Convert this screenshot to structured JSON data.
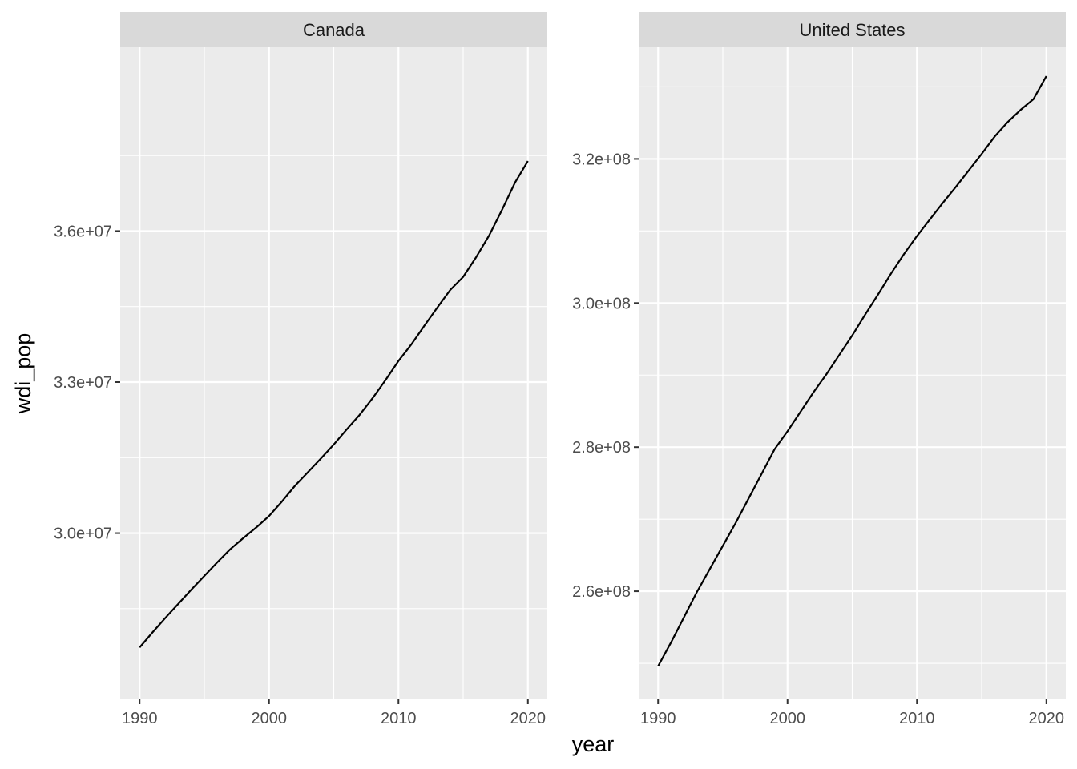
{
  "chart_data": {
    "type": "line",
    "facet_type": "wrap",
    "xlabel": "year",
    "ylabel": "wdi_pop",
    "scales": "free_y",
    "grid": true,
    "colors": {
      "panel_background": "#ebebeb",
      "strip_background": "#d9d9d9",
      "grid_line": "#ffffff",
      "line": "#000000",
      "tick_text": "#4d4d4d"
    },
    "panels": [
      {
        "name": "Canada",
        "xlim": [
          1988.5,
          2021.5
        ],
        "ylim": [
          26700000,
          39650000
        ],
        "xticks": [
          1990,
          2000,
          2010,
          2020
        ],
        "xtick_labels": [
          "1990",
          "2000",
          "2010",
          "2020"
        ],
        "yticks": [
          30000000,
          33000000,
          36000000
        ],
        "ytick_labels": [
          "3.0e+07",
          "3.3e+07",
          "3.6e+07"
        ],
        "x": [
          1990,
          1991,
          1992,
          1993,
          1994,
          1995,
          1996,
          1997,
          1998,
          1999,
          2000,
          2001,
          2002,
          2003,
          2004,
          2005,
          2006,
          2007,
          2008,
          2009,
          2010,
          2011,
          2012,
          2013,
          2014,
          2015,
          2016,
          2017,
          2018,
          2019,
          2020
        ],
        "y": [
          27730000,
          28030000,
          28320000,
          28600000,
          28880000,
          29150000,
          29420000,
          29680000,
          29900000,
          30110000,
          30340000,
          30630000,
          30940000,
          31210000,
          31480000,
          31760000,
          32060000,
          32350000,
          32680000,
          33040000,
          33420000,
          33750000,
          34120000,
          34480000,
          34830000,
          35090000,
          35480000,
          35910000,
          36420000,
          36960000,
          37390000
        ]
      },
      {
        "name": "United States",
        "xlim": [
          1988.5,
          2021.5
        ],
        "ylim": [
          245000000,
          335500000
        ],
        "xticks": [
          1990,
          2000,
          2010,
          2020
        ],
        "xtick_labels": [
          "1990",
          "2000",
          "2010",
          "2020"
        ],
        "yticks": [
          260000000,
          280000000,
          300000000,
          320000000
        ],
        "ytick_labels": [
          "2.6e+08",
          "2.8e+08",
          "3.0e+08",
          "3.2e+08"
        ],
        "x": [
          1990,
          1991,
          1992,
          1993,
          1994,
          1995,
          1996,
          1997,
          1998,
          1999,
          2000,
          2001,
          2002,
          2003,
          2004,
          2005,
          2006,
          2007,
          2008,
          2009,
          2010,
          2011,
          2012,
          2013,
          2014,
          2015,
          2016,
          2017,
          2018,
          2019,
          2020
        ],
        "y": [
          249600000,
          252900000,
          256400000,
          259900000,
          263100000,
          266300000,
          269500000,
          272900000,
          276300000,
          279700000,
          282200000,
          284900000,
          287600000,
          290100000,
          292800000,
          295500000,
          298400000,
          301200000,
          304100000,
          306800000,
          309300000,
          311600000,
          313900000,
          316100000,
          318400000,
          320700000,
          323100000,
          325100000,
          326800000,
          328300000,
          331500000
        ]
      }
    ]
  }
}
